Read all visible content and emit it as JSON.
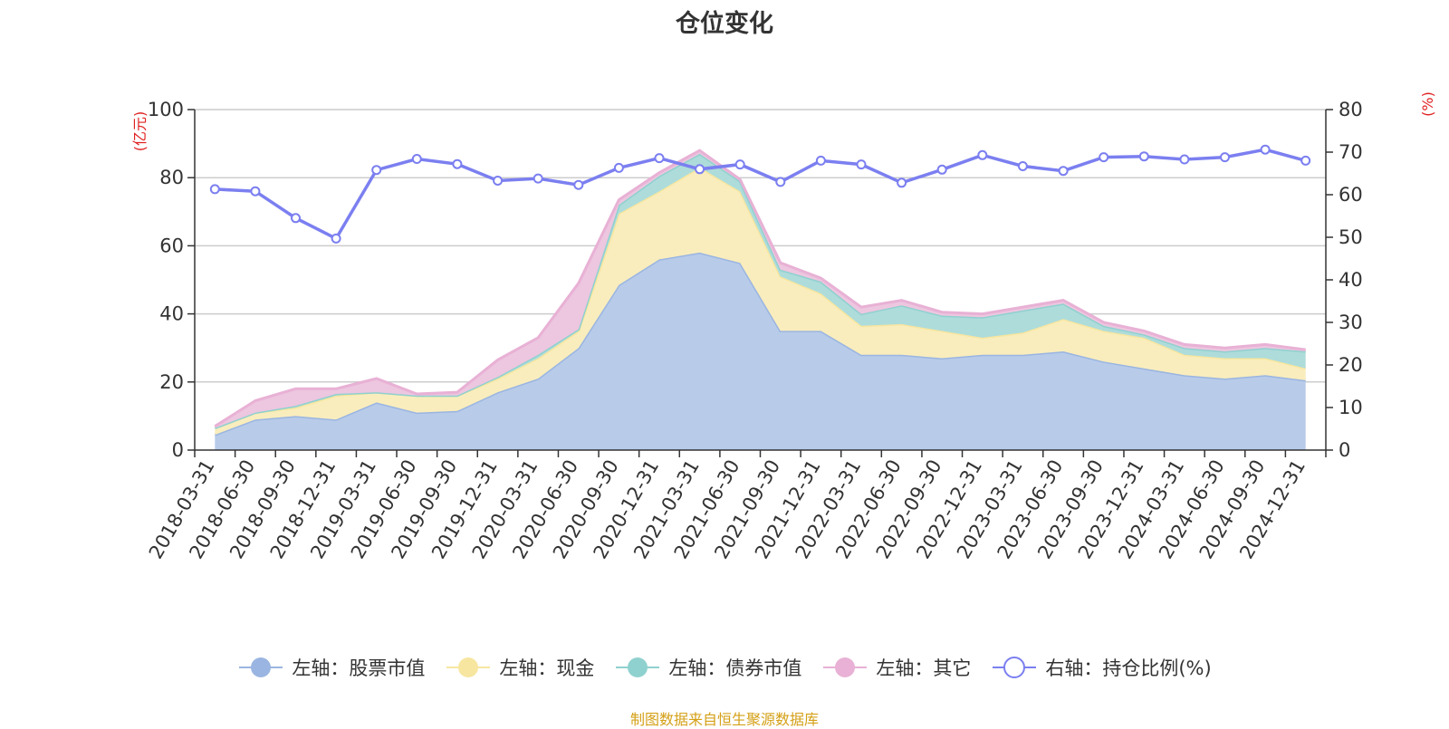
{
  "chart_data": {
    "type": "area",
    "title": "仓位变化",
    "left_axis_unit": "(亿元)",
    "right_axis_unit": "(%)",
    "left_ylim": [
      0,
      100
    ],
    "left_ticks": [
      0,
      20,
      40,
      60,
      80,
      100
    ],
    "right_ylim": [
      0,
      80
    ],
    "right_ticks": [
      0,
      10,
      20,
      30,
      40,
      50,
      60,
      70,
      80
    ],
    "categories": [
      "2018-03-31",
      "2018-06-30",
      "2018-09-30",
      "2018-12-31",
      "2019-03-31",
      "2019-06-30",
      "2019-09-30",
      "2019-12-31",
      "2020-03-31",
      "2020-06-30",
      "2020-09-30",
      "2020-12-31",
      "2021-03-31",
      "2021-06-30",
      "2021-09-30",
      "2021-12-31",
      "2022-03-31",
      "2022-06-30",
      "2022-09-30",
      "2022-12-31",
      "2023-03-31",
      "2023-06-30",
      "2023-09-30",
      "2023-12-31",
      "2024-03-31",
      "2024-06-30",
      "2024-09-30",
      "2024-12-31"
    ],
    "series": [
      {
        "name": "左轴：股票市值",
        "axis": "left",
        "type": "stacked-area",
        "color": "#9ab5e1",
        "fill": "#b8cbe9",
        "values": [
          4.5,
          9,
          10,
          9,
          14,
          11,
          11.5,
          17,
          21,
          30,
          48.5,
          56,
          58,
          55,
          35,
          35,
          28,
          28,
          27,
          28,
          28,
          29,
          26,
          24,
          22,
          21,
          22,
          20.5
        ]
      },
      {
        "name": "左轴：现金",
        "axis": "left",
        "type": "stacked-area",
        "color": "#f7e6a0",
        "fill": "#f9edbd",
        "values": [
          2,
          2,
          2.5,
          7,
          3,
          5,
          4.5,
          4,
          6,
          5,
          21,
          20,
          25,
          21,
          16,
          11,
          8.5,
          9,
          8,
          5,
          6.5,
          9.5,
          9,
          9,
          6,
          6,
          5,
          3.5
        ]
      },
      {
        "name": "左轴：债券市值",
        "axis": "left",
        "type": "stacked-area",
        "color": "#8fd1cf",
        "fill": "#aedcdb",
        "values": [
          0,
          0,
          0.5,
          0.5,
          0,
          0,
          0,
          0.5,
          1,
          0.5,
          2.5,
          4.5,
          4,
          3,
          2,
          3.5,
          3.5,
          5.5,
          4.5,
          6,
          6.5,
          4.5,
          1.5,
          1,
          2,
          2,
          3,
          5
        ]
      },
      {
        "name": "左轴：其它",
        "axis": "left",
        "type": "stacked-area",
        "color": "#e8b1d5",
        "fill": "#edc6df",
        "values": [
          0.5,
          3.5,
          5,
          1.5,
          4,
          0.5,
          1,
          5,
          5,
          13.5,
          1.5,
          1,
          1,
          0.5,
          2,
          1,
          2,
          1.5,
          1,
          1,
          1,
          1,
          1,
          1,
          1,
          1,
          1,
          0.5
        ]
      },
      {
        "name": "右轴：持仓比例(%)",
        "axis": "right",
        "type": "line",
        "color": "#7b7ff0",
        "values": [
          61.3,
          60.8,
          54.5,
          49.7,
          65.8,
          68.4,
          67.2,
          63.3,
          63.8,
          62.3,
          66.3,
          68.6,
          66.0,
          67.1,
          63.0,
          68.0,
          67.1,
          62.8,
          65.9,
          69.3,
          66.7,
          65.6,
          68.8,
          69.0,
          68.3,
          68.8,
          70.6,
          68.0
        ]
      }
    ],
    "legend_position": "bottom-center",
    "grid": true,
    "source_note": "制图数据来自恒生聚源数据库"
  }
}
